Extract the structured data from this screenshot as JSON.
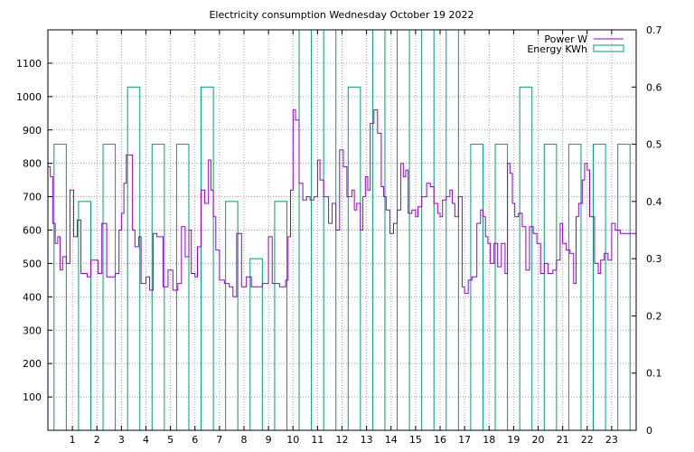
{
  "chart_data": {
    "type": "line",
    "title": "Electricity consumption Wednesday October 19 2022",
    "x_ticks": [
      1,
      2,
      3,
      4,
      5,
      6,
      7,
      8,
      9,
      10,
      11,
      12,
      13,
      14,
      15,
      16,
      17,
      18,
      19,
      20,
      21,
      22,
      23
    ],
    "xlim": [
      0,
      24
    ],
    "y_left_ticks": [
      100,
      200,
      300,
      400,
      500,
      600,
      700,
      800,
      900,
      1000,
      1100
    ],
    "y_left_lim": [
      0,
      1200
    ],
    "y_right_ticks": [
      "0",
      "0.1",
      "0.2",
      "0.3",
      "0.4",
      "0.5",
      "0.6",
      "0.7"
    ],
    "y_right_lim": [
      0,
      0.7
    ],
    "grid": true,
    "legend_position": "top-right",
    "colors": {
      "power": "#9400d3",
      "energy": "#009e73"
    },
    "series": [
      {
        "name": "Power W",
        "axis": "left",
        "style": "step",
        "points": [
          [
            0.0,
            790
          ],
          [
            0.1,
            760
          ],
          [
            0.2,
            620
          ],
          [
            0.3,
            560
          ],
          [
            0.4,
            580
          ],
          [
            0.5,
            480
          ],
          [
            0.6,
            520
          ],
          [
            0.75,
            500
          ],
          [
            0.9,
            720
          ],
          [
            1.05,
            580
          ],
          [
            1.2,
            630
          ],
          [
            1.35,
            470
          ],
          [
            1.6,
            460
          ],
          [
            1.75,
            510
          ],
          [
            2.05,
            470
          ],
          [
            2.2,
            620
          ],
          [
            2.4,
            460
          ],
          [
            2.75,
            470
          ],
          [
            2.9,
            600
          ],
          [
            3.0,
            650
          ],
          [
            3.1,
            740
          ],
          [
            3.2,
            825
          ],
          [
            3.45,
            600
          ],
          [
            3.55,
            550
          ],
          [
            3.7,
            580
          ],
          [
            3.8,
            440
          ],
          [
            4.0,
            460
          ],
          [
            4.15,
            420
          ],
          [
            4.3,
            590
          ],
          [
            4.45,
            580
          ],
          [
            4.7,
            430
          ],
          [
            4.9,
            480
          ],
          [
            5.1,
            420
          ],
          [
            5.3,
            440
          ],
          [
            5.45,
            610
          ],
          [
            5.6,
            520
          ],
          [
            5.75,
            600
          ],
          [
            5.85,
            470
          ],
          [
            6.0,
            460
          ],
          [
            6.1,
            550
          ],
          [
            6.25,
            720
          ],
          [
            6.4,
            680
          ],
          [
            6.55,
            810
          ],
          [
            6.65,
            720
          ],
          [
            6.75,
            640
          ],
          [
            6.85,
            540
          ],
          [
            7.0,
            450
          ],
          [
            7.2,
            440
          ],
          [
            7.4,
            430
          ],
          [
            7.55,
            400
          ],
          [
            7.7,
            590
          ],
          [
            7.9,
            430
          ],
          [
            8.1,
            460
          ],
          [
            8.3,
            430
          ],
          [
            8.75,
            440
          ],
          [
            9.0,
            580
          ],
          [
            9.15,
            440
          ],
          [
            9.35,
            440
          ],
          [
            9.45,
            430
          ],
          [
            9.7,
            450
          ],
          [
            9.8,
            580
          ],
          [
            9.9,
            720
          ],
          [
            10.0,
            960
          ],
          [
            10.1,
            930
          ],
          [
            10.25,
            740
          ],
          [
            10.4,
            690
          ],
          [
            10.55,
            700
          ],
          [
            10.7,
            690
          ],
          [
            10.85,
            700
          ],
          [
            11.0,
            810
          ],
          [
            11.1,
            750
          ],
          [
            11.25,
            700
          ],
          [
            11.45,
            620
          ],
          [
            11.6,
            680
          ],
          [
            11.75,
            600
          ],
          [
            11.9,
            840
          ],
          [
            12.05,
            790
          ],
          [
            12.2,
            700
          ],
          [
            12.4,
            720
          ],
          [
            12.5,
            660
          ],
          [
            12.6,
            680
          ],
          [
            12.75,
            600
          ],
          [
            12.85,
            700
          ],
          [
            12.95,
            760
          ],
          [
            13.05,
            720
          ],
          [
            13.15,
            920
          ],
          [
            13.3,
            960
          ],
          [
            13.45,
            890
          ],
          [
            13.6,
            730
          ],
          [
            13.7,
            700
          ],
          [
            13.8,
            660
          ],
          [
            13.95,
            590
          ],
          [
            14.1,
            620
          ],
          [
            14.25,
            660
          ],
          [
            14.4,
            800
          ],
          [
            14.5,
            760
          ],
          [
            14.6,
            780
          ],
          [
            14.7,
            650
          ],
          [
            14.85,
            660
          ],
          [
            15.0,
            640
          ],
          [
            15.1,
            670
          ],
          [
            15.25,
            700
          ],
          [
            15.45,
            740
          ],
          [
            15.6,
            730
          ],
          [
            15.75,
            680
          ],
          [
            15.9,
            650
          ],
          [
            16.0,
            640
          ],
          [
            16.1,
            690
          ],
          [
            16.25,
            700
          ],
          [
            16.4,
            720
          ],
          [
            16.5,
            680
          ],
          [
            16.6,
            640
          ],
          [
            16.75,
            700
          ],
          [
            16.9,
            430
          ],
          [
            17.0,
            410
          ],
          [
            17.15,
            450
          ],
          [
            17.3,
            460
          ],
          [
            17.5,
            620
          ],
          [
            17.65,
            660
          ],
          [
            17.75,
            640
          ],
          [
            17.85,
            580
          ],
          [
            17.95,
            560
          ],
          [
            18.05,
            500
          ],
          [
            18.2,
            560
          ],
          [
            18.35,
            490
          ],
          [
            18.5,
            560
          ],
          [
            18.65,
            470
          ],
          [
            18.75,
            800
          ],
          [
            18.85,
            770
          ],
          [
            18.95,
            680
          ],
          [
            19.05,
            640
          ],
          [
            19.2,
            650
          ],
          [
            19.35,
            610
          ],
          [
            19.5,
            480
          ],
          [
            19.65,
            610
          ],
          [
            19.8,
            590
          ],
          [
            19.95,
            560
          ],
          [
            20.1,
            470
          ],
          [
            20.25,
            500
          ],
          [
            20.4,
            470
          ],
          [
            20.6,
            480
          ],
          [
            20.75,
            510
          ],
          [
            20.9,
            620
          ],
          [
            21.0,
            560
          ],
          [
            21.15,
            540
          ],
          [
            21.3,
            530
          ],
          [
            21.45,
            440
          ],
          [
            21.55,
            640
          ],
          [
            21.65,
            680
          ],
          [
            21.8,
            750
          ],
          [
            21.9,
            800
          ],
          [
            22.0,
            780
          ],
          [
            22.1,
            640
          ],
          [
            22.3,
            500
          ],
          [
            22.45,
            470
          ],
          [
            22.55,
            510
          ],
          [
            22.7,
            530
          ],
          [
            22.85,
            510
          ],
          [
            23.0,
            620
          ],
          [
            23.15,
            600
          ],
          [
            23.35,
            590
          ]
        ]
      },
      {
        "name": "Energy KWh",
        "axis": "right",
        "style": "boxes",
        "values": [
          0.5,
          0.4,
          0.5,
          0.6,
          0.5,
          0.5,
          0.6,
          0.4,
          0.3,
          0.4,
          0.7,
          0.7,
          0.6,
          0.7,
          0.7,
          0.7,
          0.7,
          0.5,
          0.5,
          0.6,
          0.5,
          0.5,
          0.5,
          0.5
        ]
      }
    ]
  }
}
